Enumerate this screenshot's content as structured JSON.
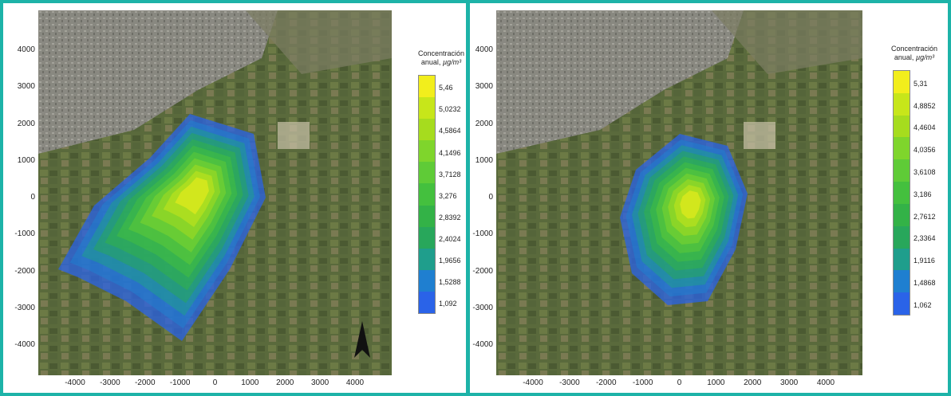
{
  "frame_color": "#1db3a8",
  "panels": [
    {
      "id": "left",
      "colorbar": {
        "title_line1": "Concentración",
        "title_line2_prefix": "anual, ",
        "title_unit": "µg/m³",
        "levels": [
          "5,46",
          "5,0232",
          "4,5864",
          "4,1496",
          "3,7128",
          "3,276",
          "2,8392",
          "2,4024",
          "1,9656",
          "1,5288",
          "1,092"
        ],
        "colors": [
          "#f2ee1c",
          "#c7e61a",
          "#a6dc1e",
          "#7fd52c",
          "#5fcb37",
          "#44c03e",
          "#33b247",
          "#28a75b",
          "#1f9e8c",
          "#1f7fd0",
          "#2a63e8"
        ]
      },
      "y_ticks": [
        "4000",
        "3000",
        "2000",
        "1000",
        "0",
        "-1000",
        "-2000",
        "-3000",
        "-4000"
      ],
      "x_ticks": [
        "-4000",
        "-3000",
        "-2000",
        "-1000",
        "0",
        "1000",
        "2000",
        "3000",
        "4000"
      ]
    },
    {
      "id": "right",
      "colorbar": {
        "title_line1": "Concentración",
        "title_line2_prefix": "anual, ",
        "title_unit": "µg/m³",
        "levels": [
          "5,31",
          "4,8852",
          "4,4604",
          "4,0356",
          "3,6108",
          "3,186",
          "2,7612",
          "2,3364",
          "1,9116",
          "1,4868",
          "1,062"
        ],
        "colors": [
          "#f2ee1c",
          "#c7e61a",
          "#a6dc1e",
          "#7fd52c",
          "#5fcb37",
          "#44c03e",
          "#33b247",
          "#28a75b",
          "#1f9e8c",
          "#1f7fd0",
          "#2a63e8"
        ]
      },
      "y_ticks": [
        "4000",
        "3000",
        "2000",
        "1000",
        "0",
        "-1000",
        "-2000",
        "-3000",
        "-4000"
      ],
      "x_ticks": [
        "-4000",
        "-3000",
        "-2000",
        "-1000",
        "0",
        "1000",
        "2000",
        "3000",
        "4000"
      ]
    }
  ],
  "icons": {
    "north_arrow": "north-arrow-icon"
  }
}
